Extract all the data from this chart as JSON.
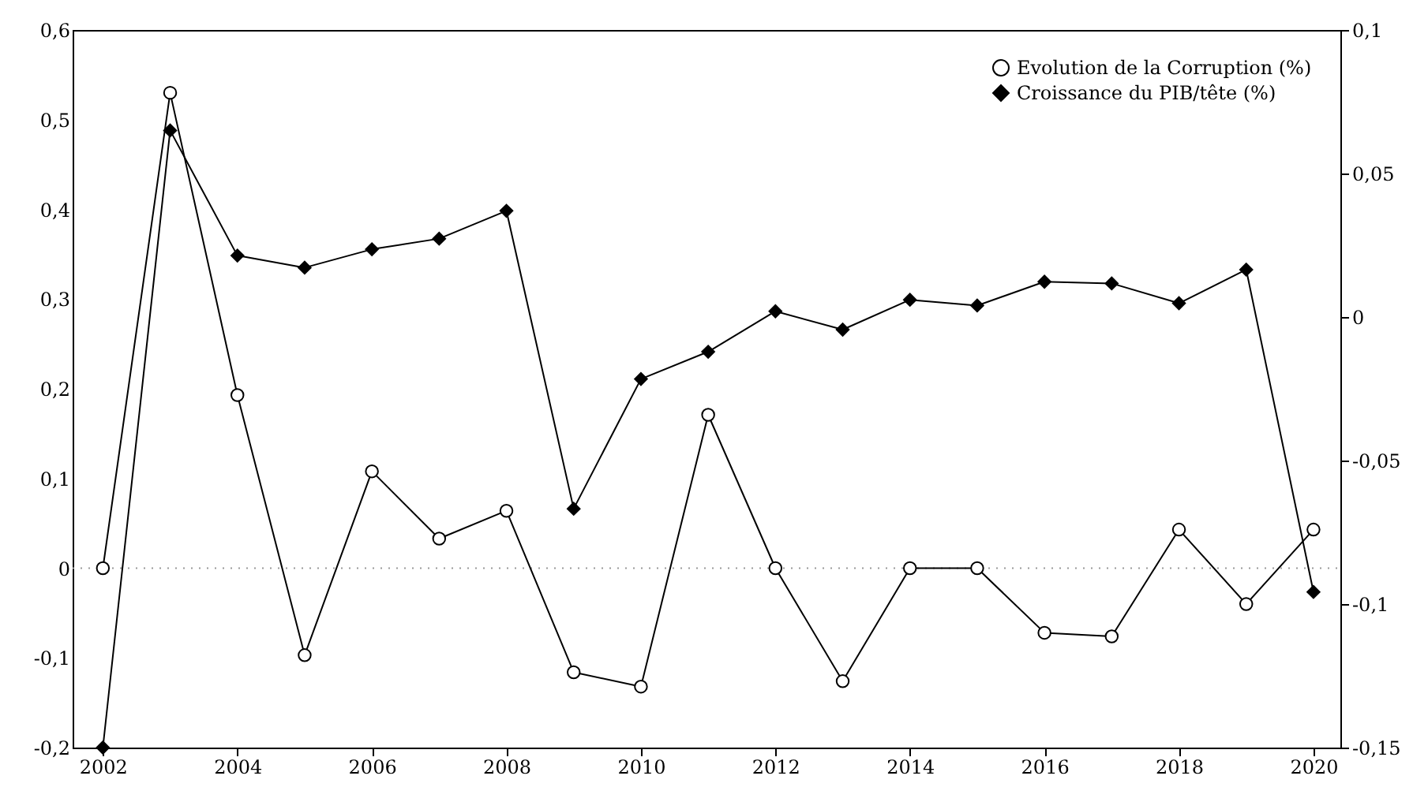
{
  "chart_data": {
    "type": "line",
    "x": [
      2002,
      2003,
      2004,
      2005,
      2006,
      2007,
      2008,
      2009,
      2010,
      2011,
      2012,
      2013,
      2014,
      2015,
      2016,
      2017,
      2018,
      2019,
      2020
    ],
    "series": [
      {
        "name": "Evolution de la Corruption (%)",
        "color": "#000000",
        "marker": "circle",
        "values": [
          0,
          0.53,
          0.193,
          -0.097,
          0.108,
          0.033,
          0.064,
          -0.116,
          -0.132,
          0.171,
          0,
          -0.126,
          0,
          0,
          -0.072,
          -0.076,
          0.043,
          -0.04,
          0.043
        ]
      },
      {
        "name": "Croissance du PIB/tête (%)",
        "color": "#000000",
        "marker": "diamond",
        "axis": "y2",
        "values": [
          -0.15,
          0.065,
          0.0214,
          0.0172,
          0.0236,
          0.0273,
          0.037,
          -0.0668,
          -0.0216,
          -0.0121,
          0.002,
          -0.0044,
          0.006,
          0.004,
          0.0123,
          0.0117,
          0.0048,
          0.0165,
          -0.0958
        ]
      }
    ],
    "xlim": [
      2001.55,
      2020.4
    ],
    "xticks": [
      2002,
      2004,
      2006,
      2008,
      2010,
      2012,
      2014,
      2016,
      2018,
      2020
    ],
    "ylim": [
      -0.2,
      0.6
    ],
    "yticks": [
      {
        "value": -0.2,
        "label": "-0,2"
      },
      {
        "value": -0.1,
        "label": "-0,1"
      },
      0,
      {
        "value": 0.1,
        "label": "0,1"
      },
      {
        "value": 0.2,
        "label": "0,2"
      },
      {
        "value": 0.3,
        "label": "0,3"
      },
      {
        "value": 0.4,
        "label": "0,4"
      },
      {
        "value": 0.5,
        "label": "0,5"
      },
      {
        "value": 0.6,
        "label": "0,6"
      }
    ],
    "y2lim": [
      -0.15,
      0.1
    ],
    "y2ticks": [
      {
        "value": -0.15,
        "label": "-0,15"
      },
      {
        "value": -0.1,
        "label": "-0,1"
      },
      {
        "value": -0.05,
        "label": "-0,05"
      },
      0,
      {
        "value": 0.05,
        "label": "0,05"
      },
      {
        "value": 0.1,
        "label": "0,1"
      }
    ],
    "ref_lines": [
      {
        "axis": "y",
        "value": 0,
        "color": "#999999",
        "line_style": "dotted"
      }
    ],
    "grid": false,
    "legend": "top right",
    "line_style": "solid"
  }
}
